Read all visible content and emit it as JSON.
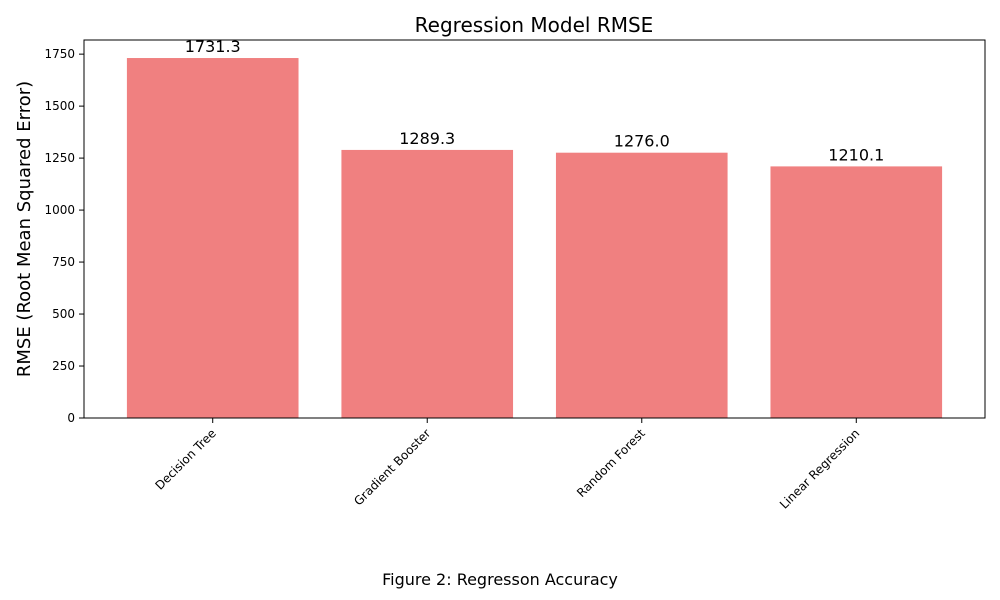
{
  "chart_data": {
    "type": "bar",
    "title": "Regression Model RMSE",
    "xlabel": "",
    "ylabel": "RMSE (Root Mean Squared Error)",
    "categories": [
      "Decision Tree",
      "Gradient Booster",
      "Random Forest",
      "Linear Regression"
    ],
    "values": [
      1731.3,
      1289.3,
      1276.0,
      1210.1
    ],
    "value_labels": [
      "1731.3",
      "1289.3",
      "1276.0",
      "1210.1"
    ],
    "yticks": [
      0,
      250,
      500,
      750,
      1000,
      1250,
      1500,
      1750
    ],
    "ylim": [
      0,
      1818
    ],
    "bar_color": "#f08080",
    "grid": false,
    "x_tick_rotation_deg": -45
  },
  "caption": "Figure 2: Regresson Accuracy"
}
